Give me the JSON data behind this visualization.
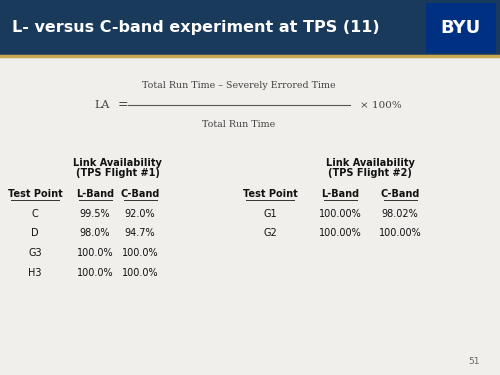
{
  "title": "L- versus C-band experiment at TPS (11)",
  "title_bg_color": "#1a3a5c",
  "title_text_color": "#ffffff",
  "byu_text": "BYU",
  "slide_bg_color": "#f0efeb",
  "accent_line_color": "#c8a951",
  "page_number": "51",
  "formula_numerator": "Total Run Time – Severely Errored Time",
  "formula_denominator": "Total Run Time",
  "formula_multiplier": "× 100%",
  "table1_header1": "Link Availability",
  "table1_header2": "(TPS Flight #1)",
  "table1_col_headers": [
    "Test Point",
    "L-Band",
    "C-Band"
  ],
  "table1_rows": [
    [
      "C",
      "99.5%",
      "92.0%"
    ],
    [
      "D",
      "98.0%",
      "94.7%"
    ],
    [
      "G3",
      "100.0%",
      "100.0%"
    ],
    [
      "H3",
      "100.0%",
      "100.0%"
    ]
  ],
  "table2_header1": "Link Availability",
  "table2_header2": "(TPS Flight #2)",
  "table2_col_headers": [
    "Test Point",
    "L-Band",
    "C-Band"
  ],
  "table2_rows": [
    [
      "G1",
      "100.00%",
      "98.02%"
    ],
    [
      "G2",
      "100.00%",
      "100.00%"
    ]
  ]
}
